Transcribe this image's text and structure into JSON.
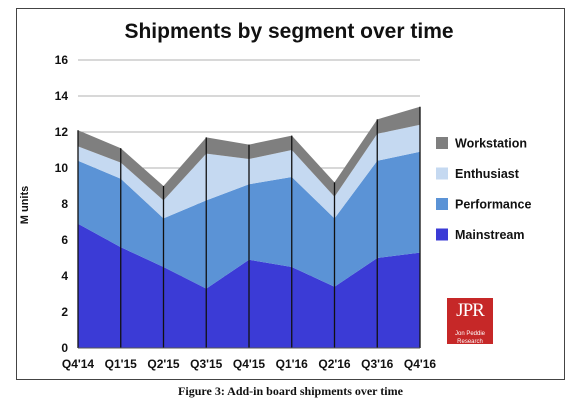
{
  "chart_data": {
    "type": "area",
    "stacked": true,
    "title": "Shipments by segment over time",
    "ylabel": "M units",
    "xlabel": "",
    "categories": [
      "Q4'14",
      "Q1'15",
      "Q2'15",
      "Q3'15",
      "Q4'15",
      "Q1'16",
      "Q2'16",
      "Q3'16",
      "Q4'16"
    ],
    "ylim": [
      0,
      16
    ],
    "yticks": [
      0,
      2,
      4,
      6,
      8,
      10,
      12,
      14,
      16
    ],
    "grid": "horizontal",
    "legend_position": "right",
    "series": [
      {
        "name": "Mainstream",
        "color": "#3b3bd6",
        "values": [
          6.9,
          5.6,
          4.5,
          3.3,
          4.9,
          4.5,
          3.4,
          5.0,
          5.3
        ]
      },
      {
        "name": "Performance",
        "color": "#5b93d6",
        "values": [
          3.5,
          3.8,
          2.7,
          4.9,
          4.2,
          5.0,
          3.8,
          5.4,
          5.6
        ]
      },
      {
        "name": "Enthusiast",
        "color": "#c5d9f1",
        "values": [
          0.8,
          0.9,
          1.0,
          2.6,
          1.4,
          1.5,
          1.2,
          1.5,
          1.5
        ]
      },
      {
        "name": "Workstation",
        "color": "#7f7f7f",
        "values": [
          0.9,
          0.8,
          0.8,
          0.9,
          0.8,
          0.8,
          0.8,
          0.8,
          1.0
        ]
      }
    ]
  },
  "caption": "Figure 3: Add-in board shipments over time",
  "logo": {
    "mark": "JPR",
    "sub": "Jon Peddie Research"
  }
}
